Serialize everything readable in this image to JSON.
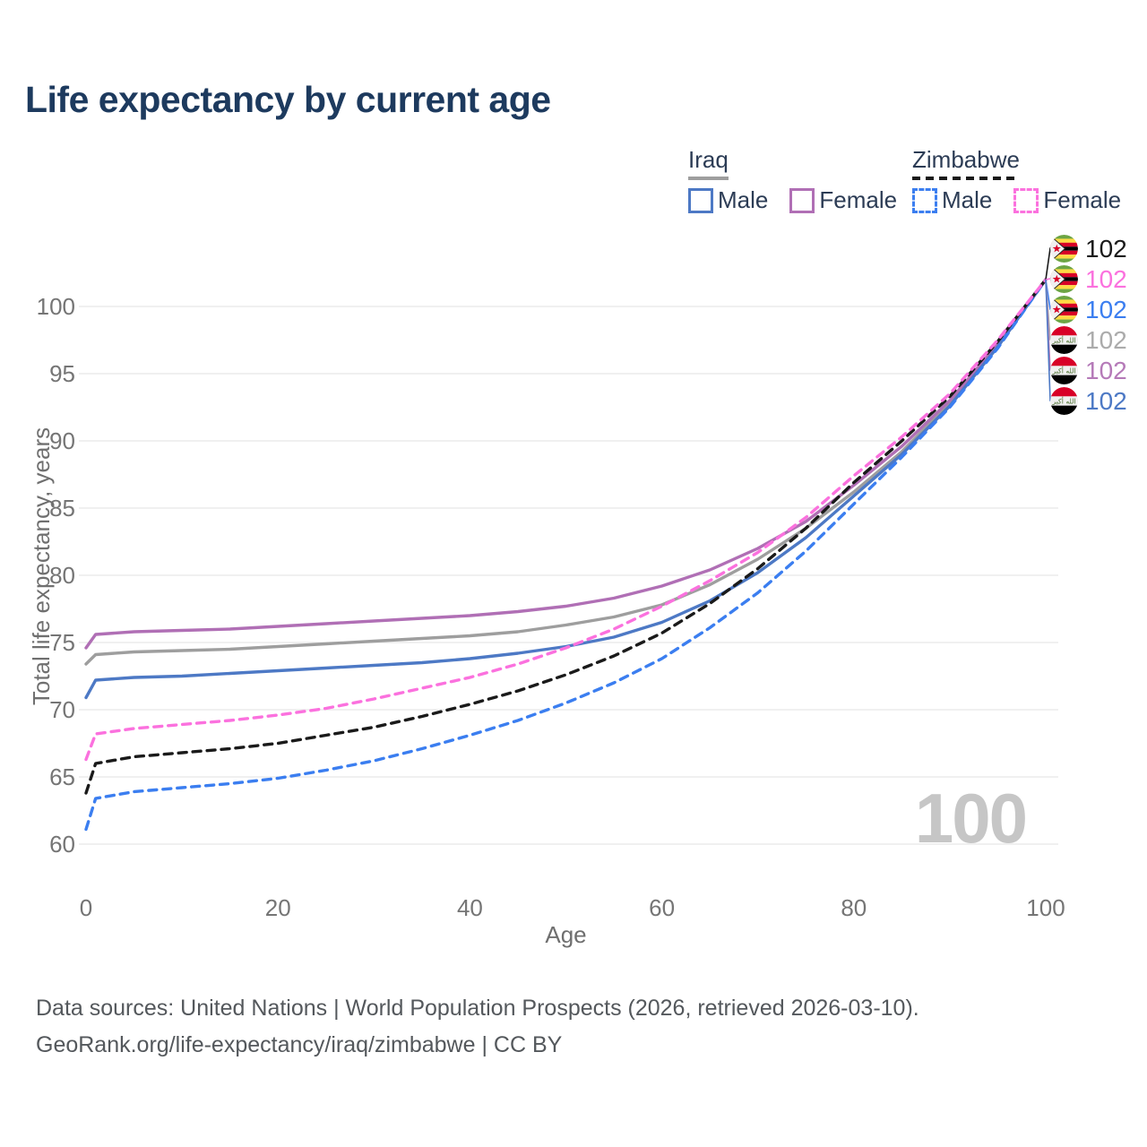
{
  "title": "Life expectancy by current age",
  "legend": {
    "groups": [
      {
        "country": "Iraq",
        "line_style": "solid",
        "underline_color": "#9e9e9e",
        "items": [
          {
            "label": "Male",
            "color": "#4d79c5",
            "dashed": false
          },
          {
            "label": "Female",
            "color": "#b06fb5",
            "dashed": false
          }
        ]
      },
      {
        "country": "Zimbabwe",
        "line_style": "dashed",
        "underline_color": "#1a1a1a",
        "items": [
          {
            "label": "Male",
            "color": "#3b7ef0",
            "dashed": true
          },
          {
            "label": "Female",
            "color": "#fb71de",
            "dashed": true
          }
        ]
      }
    ]
  },
  "chart_data": {
    "type": "line",
    "title": "Life expectancy by current age",
    "xlabel": "Age",
    "ylabel": "Total life expectancy, years",
    "x_ticks": [
      0,
      20,
      40,
      60,
      80,
      100
    ],
    "y_ticks": [
      60,
      65,
      70,
      75,
      80,
      85,
      90,
      95,
      100
    ],
    "xlim": [
      0,
      100
    ],
    "ylim": [
      60,
      102
    ],
    "grid": "horizontal",
    "legend_position": "top-right",
    "watermark": "100",
    "ages": [
      0,
      1,
      5,
      10,
      15,
      20,
      25,
      30,
      35,
      40,
      45,
      50,
      55,
      60,
      65,
      70,
      75,
      80,
      85,
      90,
      95,
      100
    ],
    "series": [
      {
        "name": "Iraq Both sexes",
        "country": "Iraq",
        "sex": "Both",
        "color": "#9e9e9e",
        "dashed": false,
        "values": [
          73.4,
          74.1,
          74.3,
          74.4,
          74.5,
          74.7,
          74.9,
          75.1,
          75.3,
          75.5,
          75.8,
          76.3,
          76.9,
          77.8,
          79.3,
          81.2,
          83.5,
          86.2,
          89.2,
          92.8,
          97.1,
          102
        ]
      },
      {
        "name": "Iraq Female",
        "country": "Iraq",
        "sex": "Female",
        "color": "#b06fb5",
        "dashed": false,
        "values": [
          74.6,
          75.6,
          75.8,
          75.9,
          76.0,
          76.2,
          76.4,
          76.6,
          76.8,
          77.0,
          77.3,
          77.7,
          78.3,
          79.2,
          80.4,
          82.0,
          84.0,
          86.7,
          89.6,
          93.0,
          97.2,
          102
        ]
      },
      {
        "name": "Iraq Male",
        "country": "Iraq",
        "sex": "Male",
        "color": "#4d79c5",
        "dashed": false,
        "values": [
          70.9,
          72.2,
          72.4,
          72.5,
          72.7,
          72.9,
          73.1,
          73.3,
          73.5,
          73.8,
          74.2,
          74.7,
          75.4,
          76.5,
          78.1,
          80.2,
          82.8,
          85.9,
          89.0,
          92.6,
          97.0,
          102
        ]
      },
      {
        "name": "Zimbabwe Male",
        "country": "Zimbabwe",
        "sex": "Male",
        "color": "#3b7ef0",
        "dashed": true,
        "values": [
          61.1,
          63.4,
          63.9,
          64.2,
          64.5,
          64.9,
          65.5,
          66.2,
          67.1,
          68.1,
          69.2,
          70.5,
          72.0,
          73.8,
          76.1,
          78.7,
          81.8,
          85.3,
          88.8,
          92.5,
          96.9,
          102
        ]
      },
      {
        "name": "Zimbabwe Both sexes",
        "country": "Zimbabwe",
        "sex": "Both",
        "color": "#1a1a1a",
        "dashed": true,
        "values": [
          63.8,
          66.0,
          66.5,
          66.8,
          67.1,
          67.5,
          68.1,
          68.7,
          69.5,
          70.4,
          71.4,
          72.6,
          74.0,
          75.7,
          77.9,
          80.5,
          83.5,
          86.9,
          90.0,
          93.3,
          97.4,
          102
        ]
      },
      {
        "name": "Zimbabwe Female",
        "country": "Zimbabwe",
        "sex": "Female",
        "color": "#fb71de",
        "dashed": true,
        "values": [
          66.3,
          68.2,
          68.6,
          68.9,
          69.2,
          69.6,
          70.1,
          70.8,
          71.6,
          72.4,
          73.4,
          74.6,
          76.0,
          77.7,
          79.6,
          81.7,
          84.3,
          87.4,
          90.3,
          93.5,
          97.5,
          102
        ]
      }
    ],
    "end_labels": [
      {
        "series": "Zimbabwe Both sexes",
        "flag": "zimbabwe",
        "value": "102",
        "color": "#1a1a1a"
      },
      {
        "series": "Zimbabwe Female",
        "flag": "zimbabwe",
        "value": "102",
        "color": "#fb71de"
      },
      {
        "series": "Zimbabwe Male",
        "flag": "zimbabwe",
        "value": "102",
        "color": "#3b7ef0"
      },
      {
        "series": "Iraq Both sexes",
        "flag": "iraq",
        "value": "102",
        "color": "#ababab"
      },
      {
        "series": "Iraq Female",
        "flag": "iraq",
        "value": "102",
        "color": "#b57ab8"
      },
      {
        "series": "Iraq Male",
        "flag": "iraq",
        "value": "102",
        "color": "#4d79c5"
      }
    ]
  },
  "footer": {
    "line1": "Data sources: United Nations | World Population Prospects (2026, retrieved 2026-03-10).",
    "line2": "GeoRank.org/life-expectancy/iraq/zimbabwe | CC BY"
  }
}
